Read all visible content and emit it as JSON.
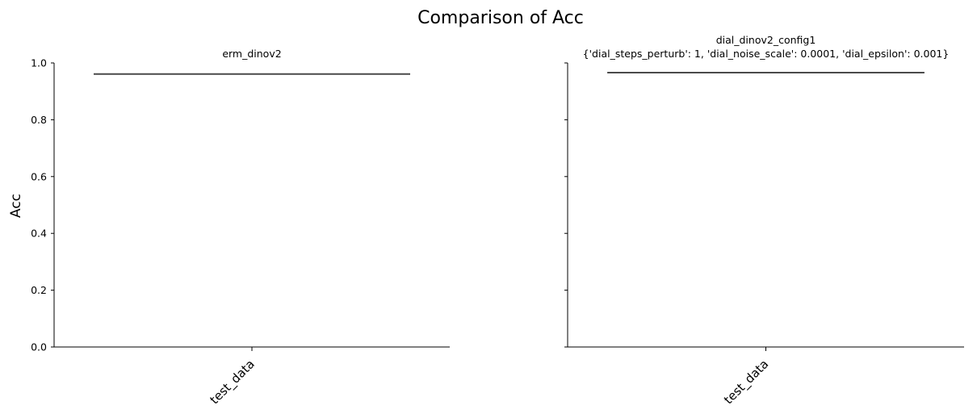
{
  "chart_data": {
    "type": "box",
    "title": "Comparison of Acc",
    "ylabel": "Acc",
    "ylim": [
      0,
      1
    ],
    "yticks": [
      "0.0",
      "0.2",
      "0.4",
      "0.6",
      "0.8",
      "1.0"
    ],
    "sharey": true,
    "panels": [
      {
        "title_lines": [
          "erm_dinov2"
        ],
        "categories": [
          "test_data"
        ],
        "values": [
          0.961
        ]
      },
      {
        "title_lines": [
          "dial_dinov2_config1",
          "{'dial_steps_perturb': 1, 'dial_noise_scale': 0.0001, 'dial_epsilon': 0.001}"
        ],
        "categories": [
          "test_data"
        ],
        "values": [
          0.966
        ]
      }
    ]
  }
}
